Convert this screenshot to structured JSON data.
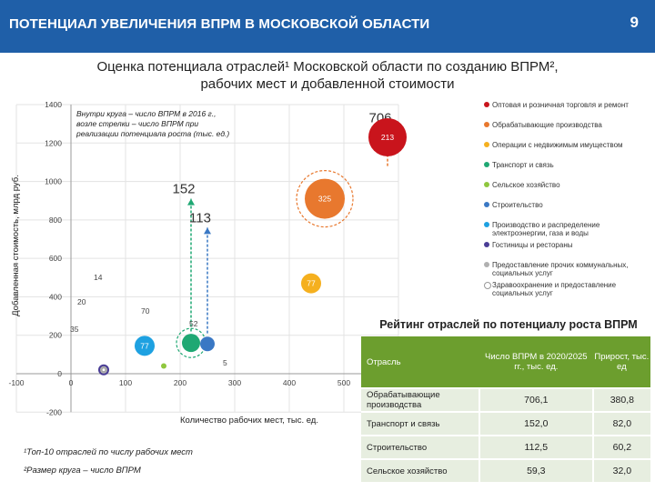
{
  "header": {
    "title": "ПОТЕНЦИАЛ УВЕЛИЧЕНИЯ ВПРМ В МОСКОВСКОЙ ОБЛАСТИ",
    "page_number": "9"
  },
  "subtitle": {
    "line1": "Оценка потенциала отраслей¹ Московской области по созданию ВПРМ²,",
    "line2": "рабочих мест и добавленной стоимости"
  },
  "chart_data": {
    "type": "scatter",
    "xlabel": "Количество рабочих мест, тыс. ед.",
    "ylabel": "Добавленная стоимость, млрд руб.",
    "xlim": [
      -100,
      600
    ],
    "ylim": [
      -200,
      1400
    ],
    "x_ticks": [
      -100,
      0,
      100,
      200,
      300,
      400,
      500,
      600
    ],
    "y_ticks": [
      -200,
      0,
      200,
      400,
      600,
      800,
      1000,
      1200,
      1400
    ],
    "note": "Внутри круга – число ВПРМ в 2016 г., возле стрелки – число ВПРМ при реализации потенциала роста (тыс. ед.)",
    "points": [
      {
        "label": "Оптовая и розничная торговля и ремонт",
        "x": 580,
        "y": 1230,
        "value": "213",
        "color": "#c9141c"
      },
      {
        "label": "Обрабатывающие производства",
        "x": 465,
        "y": 910,
        "value": "325",
        "color": "#e8782e"
      },
      {
        "label": "Операции с недвижимым имуществом",
        "x": 440,
        "y": 470,
        "value": "77",
        "color": "#f5b01f"
      },
      {
        "label": "Транспорт и связь",
        "x": 220,
        "y": 160,
        "value": "",
        "color": "#1fa873"
      },
      {
        "label": "Сельское хозяйство",
        "x": 170,
        "y": 40,
        "value": "",
        "color": "#8fc73e"
      },
      {
        "label": "Строительство",
        "x": 250,
        "y": 155,
        "value": "",
        "color": "#3a78c4"
      },
      {
        "label": "Производство и распределение электроэнергии, газа и воды",
        "x": 135,
        "y": 145,
        "value": "77",
        "color": "#1ea1e1"
      },
      {
        "label": "Гостиницы и рестораны",
        "x": 60,
        "y": 20,
        "value": "",
        "color": "#4a3d96"
      },
      {
        "label": "Предоставление прочих коммунальных, социальных услуг",
        "x": 60,
        "y": 20,
        "value": "",
        "color": "#b0b0b0"
      },
      {
        "label": "Здравоохранение и предоставление социальных услуг",
        "x": 60,
        "y": 20,
        "value": "",
        "color": "#ffffff"
      }
    ],
    "arrows": [
      {
        "x": 580,
        "y1": 1080,
        "y2": 1280,
        "label": "706"
      },
      {
        "x": 220,
        "y1": 220,
        "y2": 910,
        "label": "152"
      },
      {
        "x": 250,
        "y1": 210,
        "y2": 760,
        "label": "113"
      }
    ],
    "annotations": [
      "14",
      "20",
      "35",
      "70",
      "52",
      "5"
    ]
  },
  "table": {
    "title": "Рейтинг отраслей по потенциалу роста ВПРМ",
    "headers": [
      "Отрасль",
      "Число ВПРМ в 2020/2025 гг., тыс. ед.",
      "Прирост, тыс. ед"
    ],
    "rows": [
      [
        "Обрабатывающие производства",
        "706,1",
        "380,8"
      ],
      [
        "Транспорт и связь",
        "152,0",
        "82,0"
      ],
      [
        "Строительство",
        "112,5",
        "60,2"
      ],
      [
        "Сельское хозяйство",
        "59,3",
        "32,0"
      ]
    ]
  },
  "footnotes": {
    "note1": "¹Топ-10 отраслей по числу рабочих мест",
    "note2": "²Размер круга – число ВПРМ"
  }
}
